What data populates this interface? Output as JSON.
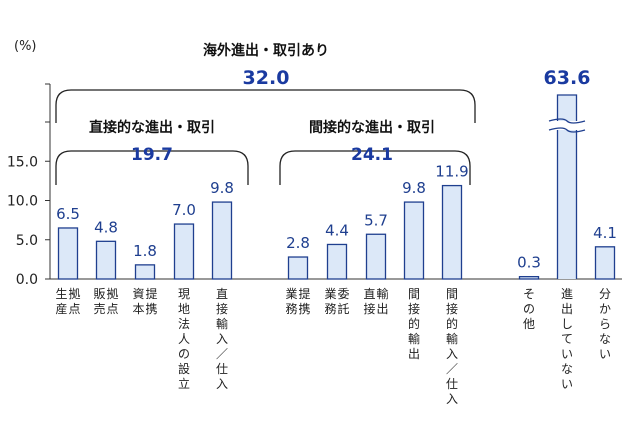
{
  "chart_data": {
    "type": "bar",
    "y_unit_label": "(%)",
    "yticks": [
      "0.0",
      "5.0",
      "10.0",
      "15.0"
    ],
    "ylim": [
      0,
      20
    ],
    "y_axis_break": true,
    "grid": false,
    "colors": {
      "bar_fill": "#dce8f8",
      "bar_stroke": "#1f3f8f",
      "value_label": "#1f3f8f",
      "group_value": "#1a3aa0"
    },
    "bars": [
      {
        "label": "生産拠点",
        "value": 6.5,
        "value_label": "6.5"
      },
      {
        "label": "販売拠点",
        "value": 4.8,
        "value_label": "4.8"
      },
      {
        "label": "資本提携",
        "value": 1.8,
        "value_label": "1.8"
      },
      {
        "label": "現地法人の設立",
        "value": 7.0,
        "value_label": "7.0"
      },
      {
        "label": "直接輸入／仕入",
        "value": 9.8,
        "value_label": "9.8"
      },
      {
        "label": "業務提携",
        "value": 2.8,
        "value_label": "2.8"
      },
      {
        "label": "業務委託",
        "value": 4.4,
        "value_label": "4.4"
      },
      {
        "label": "直接輸出",
        "value": 5.7,
        "value_label": "5.7"
      },
      {
        "label": "間接的輸出",
        "value": 9.8,
        "value_label": "9.8"
      },
      {
        "label": "間接的輸入／仕入",
        "value": 11.9,
        "value_label": "11.9"
      },
      {
        "label": "その他",
        "value": 0.3,
        "value_label": "0.3"
      },
      {
        "label": "進出していない",
        "value": 63.6,
        "value_label": "63.6",
        "broken": true
      },
      {
        "label": "分からない",
        "value": 4.1,
        "value_label": "4.1"
      }
    ],
    "groups": {
      "overseas": {
        "title": "海外進出・取引あり",
        "value": "32.0"
      },
      "direct": {
        "title": "直接的な進出・取引",
        "value": "19.7"
      },
      "indirect": {
        "title": "間接的な進出・取引",
        "value": "24.1"
      }
    }
  }
}
